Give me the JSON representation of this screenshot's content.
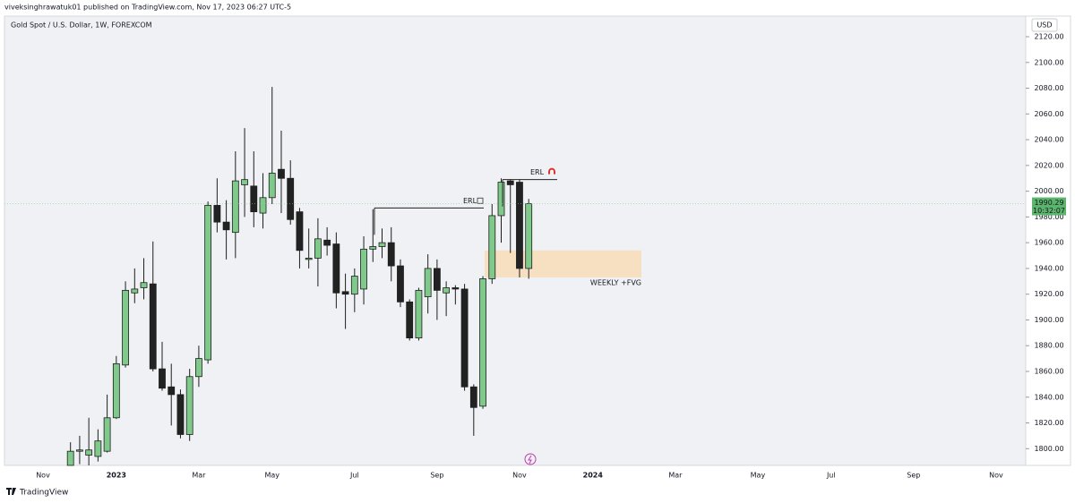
{
  "header": {
    "text": "viveksinghrawatuk01 published on TradingView.com, Nov 17, 2023 06:27 UTC-5"
  },
  "footer": {
    "brand": "TradingView"
  },
  "chart_data": {
    "type": "candlestick",
    "title": "Gold Spot / U.S. Dollar, 1W, FOREXCOM",
    "currency": "USD",
    "countdown": "10:32:07",
    "up_color": "#7fc98b",
    "down_color": "#222222",
    "outline_color": "#1e1e1e",
    "categories": [
      "Nov",
      null,
      null,
      null,
      null,
      null,
      null,
      null,
      "2023",
      null,
      null,
      null,
      null,
      null,
      null,
      null,
      null,
      "Mar",
      null,
      null,
      null,
      null,
      null,
      null,
      null,
      "May",
      null,
      null,
      null,
      null,
      null,
      null,
      null,
      null,
      "Jul",
      null,
      null,
      null,
      null,
      null,
      null,
      null,
      null,
      "Sep",
      null,
      null,
      null,
      null,
      null,
      null,
      null,
      null,
      "Nov",
      null,
      null,
      null,
      null,
      null,
      null,
      null,
      "2024",
      null,
      null,
      null,
      null,
      null,
      null,
      null,
      null,
      "Mar",
      null,
      null,
      null,
      null,
      null,
      null,
      null,
      null,
      "May",
      null,
      null,
      null,
      null,
      null,
      null,
      null,
      "Jul",
      null,
      null,
      null,
      null,
      null,
      null,
      null,
      null,
      "Sep",
      null,
      null,
      null,
      null,
      null,
      null,
      null,
      null,
      "Nov",
      null,
      null
    ],
    "open": [
      null,
      null,
      null,
      1787,
      1798,
      1795,
      1794,
      1798,
      1824,
      1865,
      1921,
      1925,
      1928,
      1862,
      1848,
      1842,
      1811,
      1856,
      1869,
      1989,
      1976,
      1968,
      2005,
      2004,
      1983,
      1995,
      2017,
      2010,
      1984,
      1947,
      1948,
      1962,
      1959,
      1922,
      1920,
      1924,
      1955,
      1957,
      1960,
      1942,
      1914,
      1886,
      1918,
      1940,
      1921,
      1925,
      1924,
      1848,
      1833,
      1932,
      1981,
      2008,
      2007,
      1940,
      null,
      null,
      null,
      null,
      null,
      null,
      null,
      null,
      null,
      null,
      null,
      null,
      null,
      null,
      null,
      null,
      null,
      null,
      null,
      null,
      null,
      null,
      null,
      null,
      null,
      null,
      null,
      null,
      null,
      null,
      null,
      null,
      null,
      null,
      null,
      null,
      null,
      null,
      null,
      null,
      null,
      null,
      null,
      null,
      null,
      null,
      null,
      null,
      null,
      null,
      null,
      null,
      null
    ],
    "high": [
      null,
      null,
      null,
      1805,
      1810,
      1824,
      1815,
      1842,
      1872,
      1930,
      1940,
      1948,
      1961,
      1883,
      1866,
      1846,
      1862,
      1880,
      1992,
      2010,
      1993,
      2031,
      2049,
      2031,
      2014,
      2081,
      2047,
      2024,
      1987,
      1971,
      1979,
      1972,
      1968,
      1936,
      1940,
      1965,
      1986,
      1971,
      1972,
      1947,
      1916,
      1925,
      1951,
      1947,
      1930,
      1927,
      1928,
      1850,
      1934,
      1990,
      2010,
      2009,
      2009,
      1994,
      null,
      null,
      null,
      null,
      null,
      null,
      null,
      null,
      null,
      null,
      null,
      null,
      null,
      null,
      null,
      null,
      null,
      null,
      null,
      null,
      null,
      null,
      null,
      null,
      null,
      null,
      null,
      null,
      null,
      null,
      null,
      null,
      null,
      null,
      null,
      null,
      null,
      null,
      null,
      null,
      null,
      null,
      null,
      null,
      null,
      null,
      null,
      null,
      null,
      null,
      null,
      null,
      null
    ],
    "low": [
      null,
      null,
      null,
      1787,
      1788,
      1787,
      1790,
      1797,
      1823,
      1863,
      1913,
      1916,
      1860,
      1845,
      1818,
      1808,
      1806,
      1848,
      1866,
      1968,
      1947,
      1948,
      1980,
      1972,
      1971,
      1990,
      1983,
      1974,
      1940,
      1940,
      1926,
      1950,
      1909,
      1893,
      1906,
      1912,
      1945,
      1948,
      1930,
      1910,
      1884,
      1884,
      1905,
      1900,
      1903,
      1912,
      1845,
      1810,
      1831,
      1928,
      1960,
      1952,
      1933,
      1932,
      null,
      null,
      null,
      null,
      null,
      null,
      null,
      null,
      null,
      null,
      null,
      null,
      null,
      null,
      null,
      null,
      null,
      null,
      null,
      null,
      null,
      null,
      null,
      null,
      null,
      null,
      null,
      null,
      null,
      null,
      null,
      null,
      null,
      null,
      null,
      null,
      null,
      null,
      null,
      null,
      null,
      null,
      null,
      null,
      null,
      null,
      null,
      null,
      null,
      null,
      null,
      null,
      null
    ],
    "close": [
      null,
      null,
      null,
      1798,
      1799,
      1799,
      1806,
      1824,
      1866,
      1923,
      1924,
      1929,
      1862,
      1847,
      1842,
      1811,
      1856,
      1870,
      1989,
      1976,
      1970,
      2008,
      2009,
      1984,
      1995,
      2014,
      2010,
      1978,
      1954,
      1948,
      1963,
      1958,
      1921,
      1920,
      1934,
      1955,
      1957,
      1960,
      1942,
      1914,
      1886,
      1923,
      1940,
      1923,
      1925,
      1924,
      1848,
      1832,
      1932,
      1981,
      2007,
      2005,
      1940,
      1990.29,
      null,
      null,
      null,
      null,
      null,
      null,
      null,
      null,
      null,
      null,
      null,
      null,
      null,
      null,
      null,
      null,
      null,
      null,
      null,
      null,
      null,
      null,
      null,
      null,
      null,
      null,
      null,
      null,
      null,
      null,
      null,
      null,
      null,
      null,
      null,
      null,
      null,
      null,
      null,
      null,
      null,
      null,
      null,
      null,
      null,
      null,
      null,
      null,
      null,
      null,
      null,
      null,
      null
    ],
    "ylim": [
      1787,
      2136
    ],
    "yticks": [
      {
        "value": 1800,
        "label": "1800.00"
      },
      {
        "value": 1820,
        "label": "1820.00"
      },
      {
        "value": 1840,
        "label": "1840.00"
      },
      {
        "value": 1860,
        "label": "1860.00"
      },
      {
        "value": 1880,
        "label": "1880.00"
      },
      {
        "value": 1900,
        "label": "1900.00"
      },
      {
        "value": 1920,
        "label": "1920.00"
      },
      {
        "value": 1940,
        "label": "1940.00"
      },
      {
        "value": 1960,
        "label": "1960.00"
      },
      {
        "value": 1980,
        "label": "1980.00"
      },
      {
        "value": 2000,
        "label": "2000.00"
      },
      {
        "value": 2020,
        "label": "2020.00"
      },
      {
        "value": 2040,
        "label": "2040.00"
      },
      {
        "value": 2060,
        "label": "2060.00"
      },
      {
        "value": 2080,
        "label": "2080.00"
      },
      {
        "value": 2100,
        "label": "2100.00"
      },
      {
        "value": 2120,
        "label": "2120.00"
      }
    ],
    "levels": [
      {
        "label": "ERL",
        "value": 1987
      },
      {
        "label": "ERL",
        "value": 2009
      }
    ],
    "zone": {
      "label": "WEEKLY +FVG",
      "top": 1954,
      "bottom": 1933,
      "color": "#f8dcb8"
    }
  }
}
